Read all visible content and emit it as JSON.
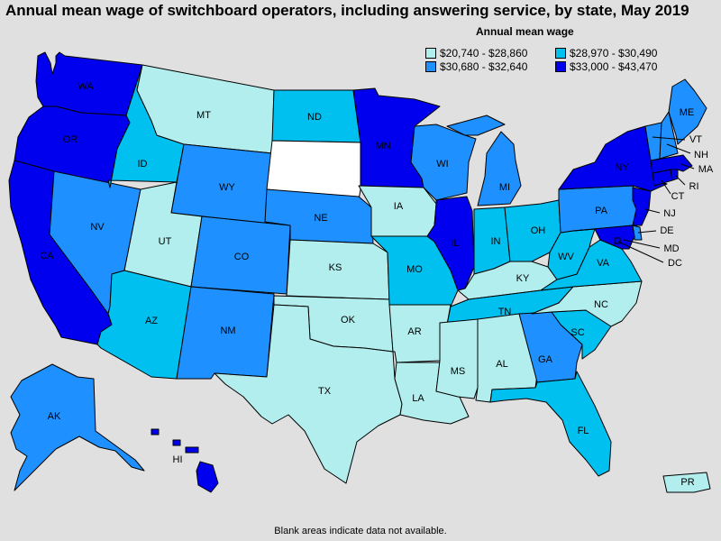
{
  "title": "Annual mean wage of switchboard operators, including answering service, by state, May 2019",
  "legend": {
    "title": "Annual mean wage",
    "items": [
      {
        "label": "$20,740 - $28,860",
        "color": "#b2eeee"
      },
      {
        "label": "$28,970 - $30,490",
        "color": "#00c0f0"
      },
      {
        "label": "$30,680 - $32,640",
        "color": "#1e90ff"
      },
      {
        "label": "$33,000 - $43,470",
        "color": "#0000ee"
      }
    ]
  },
  "no_data_color": "#ffffff",
  "footnote": "Blank areas indicate data not available.",
  "states": {
    "WA": {
      "label": "WA",
      "bin": 3
    },
    "OR": {
      "label": "OR",
      "bin": 3
    },
    "CA": {
      "label": "CA",
      "bin": 3
    },
    "NV": {
      "label": "NV",
      "bin": 2
    },
    "ID": {
      "label": "ID",
      "bin": 1
    },
    "MT": {
      "label": "MT",
      "bin": 0
    },
    "WY": {
      "label": "WY",
      "bin": 2
    },
    "UT": {
      "label": "UT",
      "bin": 0
    },
    "AZ": {
      "label": "AZ",
      "bin": 1
    },
    "CO": {
      "label": "CO",
      "bin": 2
    },
    "NM": {
      "label": "NM",
      "bin": 2
    },
    "ND": {
      "label": "ND",
      "bin": 1
    },
    "SD": {
      "label": "",
      "bin": -1
    },
    "NE": {
      "label": "NE",
      "bin": 2
    },
    "KS": {
      "label": "KS",
      "bin": 0
    },
    "OK": {
      "label": "OK",
      "bin": 0
    },
    "TX": {
      "label": "TX",
      "bin": 0
    },
    "MN": {
      "label": "MN",
      "bin": 3
    },
    "IA": {
      "label": "IA",
      "bin": 0
    },
    "MO": {
      "label": "MO",
      "bin": 1
    },
    "AR": {
      "label": "AR",
      "bin": 0
    },
    "LA": {
      "label": "LA",
      "bin": 0
    },
    "WI": {
      "label": "WI",
      "bin": 2
    },
    "IL": {
      "label": "IL",
      "bin": 3
    },
    "MI": {
      "label": "MI",
      "bin": 2
    },
    "IN": {
      "label": "IN",
      "bin": 1
    },
    "OH": {
      "label": "OH",
      "bin": 1
    },
    "KY": {
      "label": "KY",
      "bin": 0
    },
    "TN": {
      "label": "TN",
      "bin": 1
    },
    "MS": {
      "label": "MS",
      "bin": 0
    },
    "AL": {
      "label": "AL",
      "bin": 0
    },
    "GA": {
      "label": "GA",
      "bin": 2
    },
    "FL": {
      "label": "FL",
      "bin": 1
    },
    "SC": {
      "label": "SC",
      "bin": 1
    },
    "NC": {
      "label": "NC",
      "bin": 0
    },
    "VA": {
      "label": "VA",
      "bin": 1
    },
    "WV": {
      "label": "WV",
      "bin": 1
    },
    "PA": {
      "label": "PA",
      "bin": 2
    },
    "NY": {
      "label": "NY",
      "bin": 3
    },
    "VT": {
      "label": "VT",
      "bin": 2
    },
    "NH": {
      "label": "NH",
      "bin": 2
    },
    "ME": {
      "label": "ME",
      "bin": 2
    },
    "MA": {
      "label": "MA",
      "bin": 3
    },
    "RI": {
      "label": "RI",
      "bin": 3
    },
    "CT": {
      "label": "CT",
      "bin": 3
    },
    "NJ": {
      "label": "NJ",
      "bin": 3
    },
    "DE": {
      "label": "DE",
      "bin": 2
    },
    "MD": {
      "label": "MD",
      "bin": 3
    },
    "DC": {
      "label": "DC",
      "bin": 3
    },
    "AK": {
      "label": "AK",
      "bin": 2
    },
    "HI": {
      "label": "HI",
      "bin": 3
    },
    "PR": {
      "label": "PR",
      "bin": 0
    }
  }
}
